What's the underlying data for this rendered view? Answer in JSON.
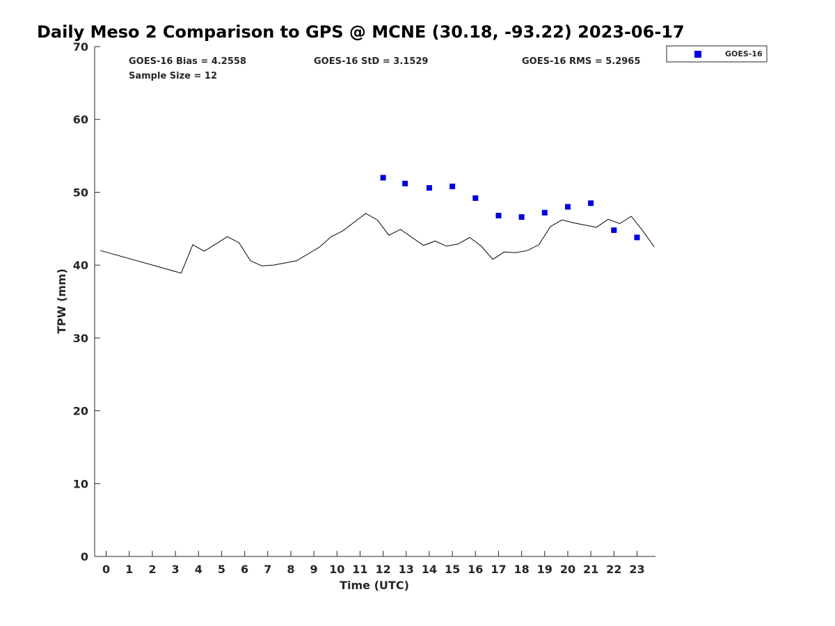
{
  "chart_data": {
    "type": "scatter",
    "title": "Daily Meso 2 Comparison to GPS @ MCNE (30.18, -93.22) 2023-06-17",
    "xlabel": "Time (UTC)",
    "ylabel": "TPW (mm)",
    "xlim": [
      -0.5,
      23.8
    ],
    "ylim": [
      0,
      70
    ],
    "x_ticks": [
      "0",
      "1",
      "2",
      "3",
      "4",
      "5",
      "6",
      "7",
      "8",
      "9",
      "10",
      "11",
      "12",
      "13",
      "14",
      "15",
      "16",
      "17",
      "18",
      "19",
      "20",
      "21",
      "22",
      "23"
    ],
    "y_ticks": [
      "0",
      "10",
      "20",
      "30",
      "40",
      "50",
      "60",
      "70"
    ],
    "grid": false,
    "legend_position": "top-right",
    "stats": {
      "bias": "GOES-16 Bias = 4.2558",
      "std": "GOES-16 StD = 3.1529",
      "rms": "GOES-16 RMS = 5.2965",
      "sample": "Sample Size = 12"
    },
    "colors": {
      "goes": "#0000dd",
      "gps": "#000000"
    },
    "series": [
      {
        "name": "GOES-16",
        "kind": "scatter",
        "x": [
          12,
          12.95,
          14,
          15,
          16,
          17,
          18,
          19,
          20,
          21,
          22,
          23
        ],
        "y": [
          52.0,
          51.2,
          50.6,
          50.8,
          49.2,
          46.8,
          46.6,
          47.2,
          48.0,
          48.5,
          44.8,
          43.8
        ]
      },
      {
        "kind": "line",
        "x": [
          -0.25,
          3.25,
          3.75,
          4.25,
          5.25,
          5.75,
          6.25,
          6.75,
          7.25,
          8.25,
          9.25,
          9.75,
          10.25,
          11.25,
          11.75,
          12.25,
          12.75,
          13.25,
          13.75,
          14.25,
          14.75,
          15.25,
          15.75,
          16.25,
          16.75,
          17.25,
          17.75,
          18.25,
          18.75,
          19.25,
          19.75,
          20.25,
          20.75,
          21.25,
          21.75,
          22.25,
          22.75,
          23.25,
          23.75
        ],
        "y": [
          42.0,
          38.9,
          42.8,
          41.9,
          43.9,
          43.1,
          40.6,
          39.9,
          40.0,
          40.6,
          42.5,
          43.9,
          44.7,
          47.1,
          46.2,
          44.1,
          44.9,
          43.8,
          42.7,
          43.3,
          42.6,
          42.9,
          43.8,
          42.6,
          40.8,
          41.8,
          41.7,
          42.0,
          42.8,
          45.3,
          46.2,
          45.8,
          45.5,
          45.2,
          46.3,
          45.7,
          46.7,
          44.7,
          42.5
        ]
      }
    ]
  }
}
